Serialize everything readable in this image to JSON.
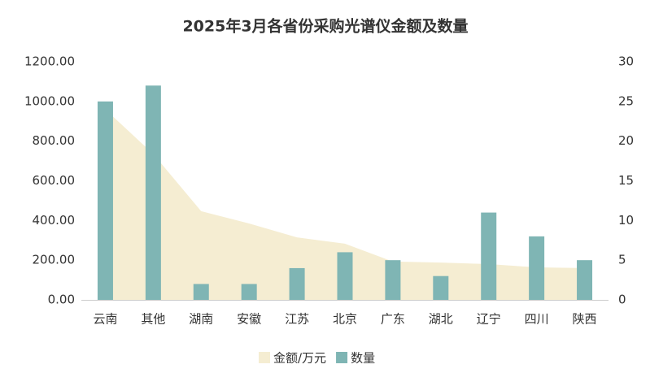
{
  "chart_data": {
    "type": "combo",
    "title": "2025年3月各省份采购光谱仪金额及数量",
    "categories": [
      "云南",
      "其他",
      "湖南",
      "安徽",
      "江苏",
      "北京",
      "广东",
      "湖北",
      "辽宁",
      "四川",
      "陕西"
    ],
    "series": [
      {
        "name": "金额/万元",
        "type": "area",
        "color": "#f5edd2",
        "values": [
          960,
          735,
          447,
          385,
          315,
          283,
          193,
          188,
          180,
          164,
          160
        ]
      },
      {
        "name": "数量",
        "type": "bar",
        "axis": "y2",
        "color": "#7fb5b4",
        "values": [
          25,
          27,
          2,
          2,
          4,
          6,
          5,
          3,
          11,
          8,
          5
        ]
      }
    ],
    "ylim": [
      0,
      1200
    ],
    "yticks": [
      {
        "value": 0,
        "label": "0.00"
      },
      {
        "value": 200,
        "label": "200.00"
      },
      {
        "value": 400,
        "label": "400.00"
      },
      {
        "value": 600,
        "label": "600.00"
      },
      {
        "value": 800,
        "label": "800.00"
      },
      {
        "value": 1000,
        "label": "1000.00"
      },
      {
        "value": 1200,
        "label": "1200.00"
      }
    ],
    "y2lim": [
      0,
      30
    ],
    "y2ticks": [
      0,
      5,
      10,
      15,
      20,
      25,
      30
    ],
    "legend": "bottom"
  }
}
